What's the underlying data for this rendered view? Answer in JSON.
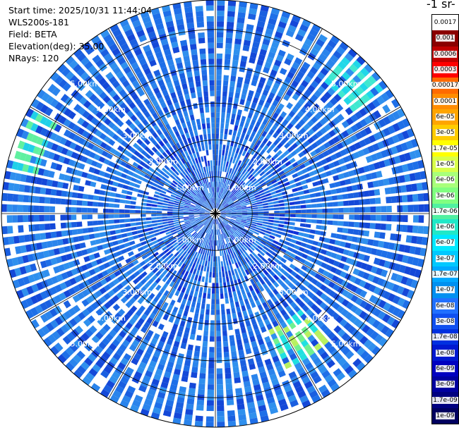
{
  "header": {
    "start_time": "Start time: 2025/10/31 11:44:04",
    "instrument": "WLS200s-181",
    "field": "Field: BETA",
    "elevation": "Elevation(deg): 35.00",
    "nrays": "NRays: 120"
  },
  "colorbar": {
    "unit_label": "-1 sr-",
    "ticks": [
      "0.0017",
      "0.001",
      "0.0006",
      "0.0003",
      "0.00017",
      "0.0001",
      "6e-05",
      "3e-05",
      "1.7e-05",
      "1e-05",
      "6e-06",
      "3e-06",
      "1.7e-06",
      "1e-06",
      "6e-07",
      "3e-07",
      "1.7e-07",
      "1e-07",
      "6e-08",
      "3e-08",
      "1.7e-08",
      "1e-08",
      "6e-09",
      "3e-09",
      "1.7e-09",
      "1e-09"
    ],
    "colors": [
      "#ffffff",
      "#8b0000",
      "#c00000",
      "#ff0000",
      "#ff6a00",
      "#ff8c00",
      "#ffa500",
      "#ffcc00",
      "#ffff00",
      "#d8ff4a",
      "#a8ff7a",
      "#80ff80",
      "#50f0a0",
      "#20e8c8",
      "#00e8ff",
      "#00c8ff",
      "#00a8ff",
      "#0090f0",
      "#2070ff",
      "#1050f0",
      "#0030e0",
      "#0018d0",
      "#0000c0",
      "#0000a0",
      "#000080",
      "#000060"
    ]
  },
  "chart_data": {
    "type": "polar-ppi",
    "rays": 120,
    "elevation_deg": 35.0,
    "max_range_km": 5.8,
    "range_rings_km": [
      1,
      2,
      3,
      4,
      5
    ],
    "ring_labels": [
      "1.00km",
      "2.00km",
      "3.00km",
      "4.00km",
      "5.00km"
    ],
    "angular_grid_deg": 30,
    "background_colors": [
      "#1e6fe8",
      "#2a84ec",
      "#1a5fe0",
      "#2f90ee",
      "#1448d8"
    ],
    "speckle_color": "#1030d8",
    "high_return_patches": [
      {
        "azimuth_deg": 145,
        "range_km": [
          3.5,
          4.7
        ],
        "colors": [
          "#20e0e0",
          "#70f090",
          "#b8f060"
        ]
      },
      {
        "azimuth_deg": 45,
        "range_km": [
          4.6,
          5.6
        ],
        "colors": [
          "#20d8e8",
          "#40e8d0"
        ]
      },
      {
        "azimuth_deg": 290,
        "range_km": [
          4.9,
          5.7
        ],
        "colors": [
          "#20d0e8",
          "#60f0a0"
        ]
      }
    ]
  }
}
